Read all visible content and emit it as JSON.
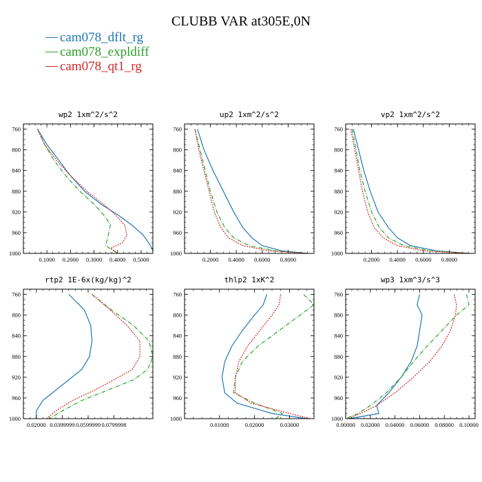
{
  "figure_title": "CLUBB VAR at305E,0N",
  "legend": [
    {
      "label": "cam078_dflt_rg",
      "color": "#1f77b4",
      "dash": ""
    },
    {
      "label": "cam078_expldiff",
      "color": "#2ca02c",
      "dash": "6,2,1,2"
    },
    {
      "label": "cam078_qt1_rg",
      "color": "#d62728",
      "dash": "2,1.5"
    }
  ],
  "chart_data": [
    {
      "type": "line",
      "title": "wp2   1xm^2/s^2",
      "ylim": [
        1000,
        750
      ],
      "xlim": [
        0,
        0.55
      ],
      "yticks": [
        760,
        800,
        840,
        880,
        920,
        960,
        1000
      ],
      "xticks": [
        0.1,
        0.2,
        0.3,
        0.4,
        0.5
      ],
      "xticklabels": [
        "0.1000",
        "0.2000",
        "0.3000",
        "0.4000",
        "0.5000"
      ],
      "series": [
        {
          "name": "cam078_dflt_rg",
          "x": [
            0.06,
            0.1,
            0.15,
            0.2,
            0.26,
            0.33,
            0.4,
            0.46,
            0.51,
            0.54,
            0.55
          ],
          "y": [
            760,
            790,
            820,
            850,
            880,
            905,
            925,
            945,
            965,
            985,
            995
          ]
        },
        {
          "name": "cam078_expldiff",
          "x": [
            0.06,
            0.09,
            0.13,
            0.18,
            0.24,
            0.3,
            0.34,
            0.37,
            0.36,
            0.35,
            0.4
          ],
          "y": [
            760,
            790,
            820,
            850,
            880,
            905,
            925,
            945,
            965,
            985,
            1000
          ]
        },
        {
          "name": "cam078_qt1_rg",
          "x": [
            0.06,
            0.09,
            0.14,
            0.2,
            0.27,
            0.34,
            0.39,
            0.43,
            0.44,
            0.42,
            0.37,
            0.4
          ],
          "y": [
            760,
            790,
            820,
            850,
            880,
            905,
            925,
            945,
            965,
            980,
            990,
            1000
          ]
        }
      ]
    },
    {
      "type": "line",
      "title": "up2   1xm^2/s^2",
      "ylim": [
        1000,
        750
      ],
      "xlim": [
        0,
        1.0
      ],
      "yticks": [
        760,
        800,
        840,
        880,
        920,
        960,
        1000
      ],
      "xticks": [
        0.2,
        0.4,
        0.6,
        0.8
      ],
      "xticklabels": [
        "0.2000",
        "0.4000",
        "0.6000",
        "0.8000"
      ],
      "series": [
        {
          "name": "cam078_dflt_rg",
          "x": [
            0.1,
            0.15,
            0.22,
            0.3,
            0.38,
            0.45,
            0.52,
            0.6,
            0.75,
            0.95
          ],
          "y": [
            760,
            800,
            840,
            880,
            920,
            950,
            970,
            985,
            995,
            1000
          ]
        },
        {
          "name": "cam078_expldiff",
          "x": [
            0.08,
            0.12,
            0.16,
            0.2,
            0.25,
            0.31,
            0.38,
            0.5,
            0.7,
            0.95
          ],
          "y": [
            760,
            800,
            840,
            880,
            920,
            950,
            970,
            985,
            995,
            1000
          ]
        },
        {
          "name": "cam078_qt1_rg",
          "x": [
            0.08,
            0.11,
            0.15,
            0.19,
            0.23,
            0.28,
            0.34,
            0.45,
            0.65,
            0.95
          ],
          "y": [
            760,
            800,
            840,
            880,
            920,
            950,
            970,
            985,
            995,
            1000
          ]
        }
      ]
    },
    {
      "type": "line",
      "title": "vp2   1xm^2/s^2",
      "ylim": [
        1000,
        750
      ],
      "xlim": [
        0,
        1.0
      ],
      "yticks": [
        760,
        800,
        840,
        880,
        920,
        960,
        1000
      ],
      "xticks": [
        0.2,
        0.4,
        0.6,
        0.8
      ],
      "xticklabels": [
        "0.2000",
        "0.4000",
        "0.6000",
        "0.8000"
      ],
      "series": [
        {
          "name": "cam078_dflt_rg",
          "x": [
            0.06,
            0.1,
            0.14,
            0.19,
            0.25,
            0.33,
            0.4,
            0.5,
            0.7,
            0.95
          ],
          "y": [
            760,
            800,
            840,
            880,
            920,
            950,
            970,
            985,
            995,
            1000
          ]
        },
        {
          "name": "cam078_expldiff",
          "x": [
            0.05,
            0.08,
            0.11,
            0.15,
            0.2,
            0.26,
            0.33,
            0.45,
            0.65,
            0.95
          ],
          "y": [
            760,
            800,
            840,
            880,
            920,
            950,
            970,
            985,
            995,
            1000
          ]
        },
        {
          "name": "cam078_qt1_rg",
          "x": [
            0.04,
            0.07,
            0.1,
            0.13,
            0.17,
            0.22,
            0.29,
            0.4,
            0.6,
            0.95
          ],
          "y": [
            760,
            800,
            840,
            880,
            920,
            950,
            970,
            985,
            995,
            1000
          ]
        }
      ]
    },
    {
      "type": "line",
      "title": "rtp2   1E-6x(kg/kg)^2",
      "ylim": [
        1000,
        750
      ],
      "xlim": [
        0.01,
        0.11
      ],
      "yticks": [
        760,
        800,
        840,
        880,
        920,
        960,
        1000
      ],
      "xticks": [
        0.02,
        0.04,
        0.06,
        0.08
      ],
      "xticklabels": [
        "0.02000",
        "0.0399999",
        "0.0599999",
        "0.0799998"
      ],
      "series": [
        {
          "name": "cam078_dflt_rg",
          "x": [
            0.045,
            0.057,
            0.062,
            0.063,
            0.061,
            0.055,
            0.045,
            0.035,
            0.025,
            0.02,
            0.02
          ],
          "y": [
            760,
            790,
            820,
            850,
            880,
            905,
            925,
            945,
            965,
            985,
            1000
          ]
        },
        {
          "name": "cam078_expldiff",
          "x": [
            0.063,
            0.078,
            0.095,
            0.107,
            0.11,
            0.106,
            0.095,
            0.075,
            0.055,
            0.04,
            0.03
          ],
          "y": [
            760,
            790,
            820,
            850,
            880,
            905,
            925,
            945,
            965,
            985,
            1000
          ]
        },
        {
          "name": "cam078_qt1_rg",
          "x": [
            0.063,
            0.077,
            0.09,
            0.1,
            0.1,
            0.094,
            0.08,
            0.065,
            0.048,
            0.035,
            0.028
          ],
          "y": [
            760,
            790,
            820,
            850,
            880,
            905,
            925,
            945,
            965,
            985,
            1000
          ]
        }
      ]
    },
    {
      "type": "line",
      "title": "thlp2   1xK^2",
      "ylim": [
        1000,
        750
      ],
      "xlim": [
        0,
        0.037
      ],
      "yticks": [
        760,
        800,
        840,
        880,
        920,
        960,
        1000
      ],
      "xticks": [
        0.01,
        0.02,
        0.03
      ],
      "xticklabels": [
        "0.01000",
        "0.02000",
        "0.03000"
      ],
      "series": [
        {
          "name": "cam078_dflt_rg",
          "x": [
            0.0235,
            0.0225,
            0.02,
            0.0165,
            0.0135,
            0.0115,
            0.0107,
            0.0115,
            0.015,
            0.025,
            0.035
          ],
          "y": [
            760,
            780,
            800,
            830,
            860,
            890,
            920,
            950,
            970,
            990,
            1000
          ]
        },
        {
          "name": "cam078_expldiff",
          "x": [
            0.034,
            0.037,
            0.033,
            0.027,
            0.021,
            0.0165,
            0.0145,
            0.014,
            0.02,
            0.028,
            0.026
          ],
          "y": [
            760,
            780,
            800,
            830,
            860,
            890,
            920,
            950,
            970,
            990,
            1000
          ]
        },
        {
          "name": "cam078_qt1_rg",
          "x": [
            0.0275,
            0.027,
            0.025,
            0.0215,
            0.018,
            0.0155,
            0.0145,
            0.0145,
            0.019,
            0.03,
            0.036
          ],
          "y": [
            760,
            780,
            800,
            830,
            860,
            890,
            920,
            950,
            970,
            990,
            1000
          ]
        }
      ]
    },
    {
      "type": "line",
      "title": "wp3   1xm^3/s^3",
      "ylim": [
        1000,
        750
      ],
      "xlim": [
        0,
        0.105
      ],
      "yticks": [
        760,
        800,
        840,
        880,
        920,
        960,
        1000
      ],
      "xticks": [
        0.0,
        0.02,
        0.04,
        0.06,
        0.08,
        0.1
      ],
      "xticklabels": [
        "0.00000",
        "0.02000",
        "0.04000",
        "0.06000",
        "0.08000",
        "0.10000"
      ],
      "series": [
        {
          "name": "cam078_dflt_rg",
          "x": [
            0.06,
            0.058,
            0.062,
            0.06,
            0.058,
            0.053,
            0.045,
            0.035,
            0.025,
            0.027,
            0.003
          ],
          "y": [
            760,
            780,
            800,
            830,
            860,
            890,
            920,
            950,
            975,
            990,
            1000
          ]
        },
        {
          "name": "cam078_expldiff",
          "x": [
            0.098,
            0.1,
            0.09,
            0.078,
            0.066,
            0.055,
            0.045,
            0.033,
            0.02,
            0.01,
            0.0
          ],
          "y": [
            760,
            780,
            800,
            830,
            860,
            890,
            920,
            950,
            975,
            990,
            1000
          ]
        },
        {
          "name": "cam078_qt1_rg",
          "x": [
            0.088,
            0.09,
            0.089,
            0.085,
            0.078,
            0.068,
            0.055,
            0.04,
            0.025,
            0.012,
            0.002
          ],
          "y": [
            760,
            780,
            800,
            830,
            860,
            890,
            920,
            950,
            975,
            990,
            1000
          ]
        }
      ]
    }
  ]
}
